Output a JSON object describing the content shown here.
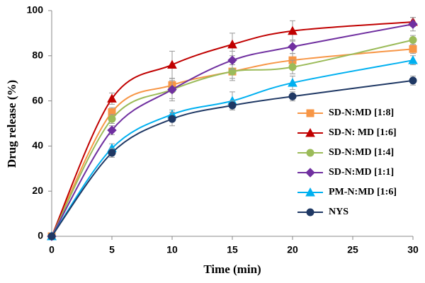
{
  "chart_data": {
    "type": "line",
    "x_label": "Time (min)",
    "y_label": "Drug release (%)",
    "x": [
      0,
      5,
      10,
      15,
      20,
      30
    ],
    "xlim": [
      0,
      30
    ],
    "xticks": [
      0,
      5,
      10,
      15,
      20,
      25,
      30
    ],
    "ylim": [
      0,
      100
    ],
    "yticks": [
      0,
      20,
      40,
      60,
      80,
      100
    ],
    "grid": false,
    "legend": "right",
    "series": [
      {
        "name": "SD-N:MD [1:8]",
        "color": "#f79646",
        "marker": "square",
        "values": [
          0,
          55,
          67,
          73,
          78,
          83
        ],
        "errors": [
          0,
          2,
          3,
          4,
          3,
          2
        ]
      },
      {
        "name": "SD-N: MD [1:6]",
        "color": "#c00000",
        "marker": "triangle",
        "values": [
          0,
          61,
          76,
          85,
          91,
          95
        ],
        "errors": [
          0,
          2.5,
          6,
          5,
          4.5,
          2
        ]
      },
      {
        "name": "SD-N:MD [1:4]",
        "color": "#9bbb59",
        "marker": "circle",
        "values": [
          0,
          52,
          65,
          73,
          75,
          87
        ],
        "errors": [
          0,
          2,
          4,
          3,
          3,
          2
        ]
      },
      {
        "name": "SD-N:MD [1:1]",
        "color": "#7030a0",
        "marker": "diamond",
        "values": [
          0,
          47,
          65,
          78,
          84,
          94
        ],
        "errors": [
          0,
          2,
          5,
          4,
          3,
          3
        ]
      },
      {
        "name": "PM-N:MD [1:6]",
        "color": "#00b0f0",
        "marker": "triangle",
        "values": [
          0,
          39,
          54,
          60,
          68,
          78
        ],
        "errors": [
          0,
          2,
          2,
          4,
          3,
          2
        ]
      },
      {
        "name": "NYS",
        "color": "#1f3864",
        "marker": "circle",
        "values": [
          0,
          37,
          52,
          58,
          62,
          69
        ],
        "errors": [
          0,
          2,
          3,
          2,
          2,
          2
        ]
      }
    ]
  }
}
